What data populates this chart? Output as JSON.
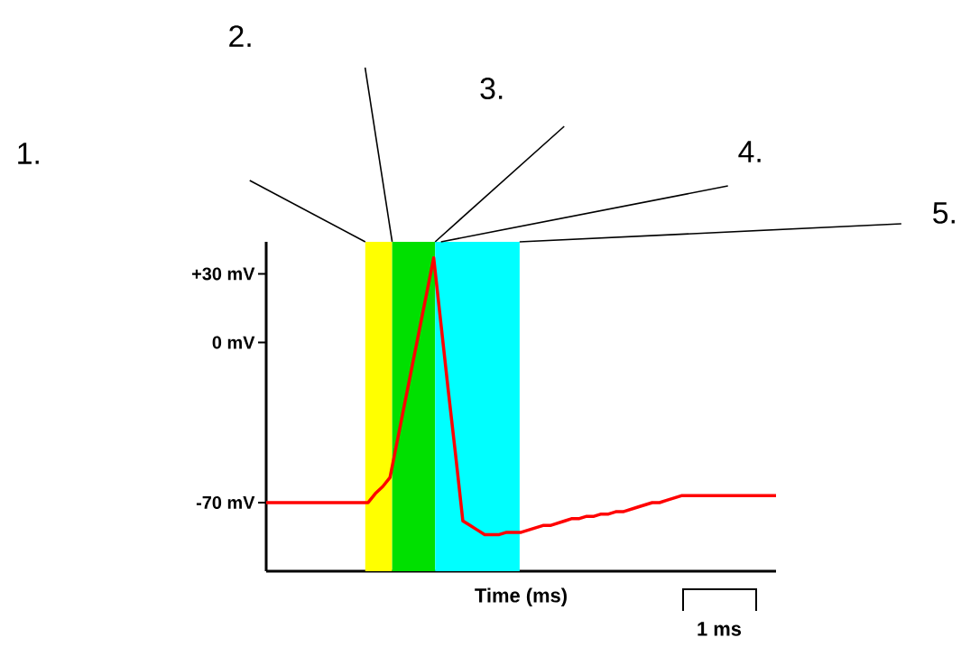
{
  "chart_data": {
    "type": "line",
    "xlabel": "Time (ms)",
    "ylim": [
      -100,
      44
    ],
    "categories": [
      null,
      null,
      null,
      null,
      null,
      null,
      null,
      null,
      null,
      null,
      null,
      null,
      null,
      null,
      null,
      null,
      null,
      null,
      null,
      null,
      null,
      null,
      null,
      null,
      null,
      null,
      null,
      null,
      null,
      null,
      null,
      null,
      null,
      null,
      null,
      null,
      null,
      null,
      null,
      null,
      null,
      null,
      null,
      null,
      null,
      null,
      null,
      null,
      null,
      null,
      null,
      null,
      null,
      null,
      null,
      null,
      null,
      null,
      null,
      null,
      null,
      null,
      null,
      null,
      null,
      null,
      null,
      null,
      null,
      null,
      null
    ],
    "yticks": [
      {
        "value": 30,
        "label": "+30 mV"
      },
      {
        "value": 0,
        "label": "0 mV"
      },
      {
        "value": -70,
        "label": "-70 mV"
      }
    ],
    "tick_labels": "y",
    "grid": false,
    "series": [
      {
        "color": "#ff0000",
        "values": [
          -70,
          -70,
          -70,
          -70,
          -70,
          -70,
          -70,
          -70,
          -70,
          -70,
          -70,
          -70,
          -70,
          -70,
          -70,
          -66,
          -63,
          -59,
          -43,
          -27,
          -11,
          5,
          21,
          37,
          8,
          -21,
          -49,
          -78,
          -80,
          -82,
          -84,
          -84,
          -84,
          -83,
          -83,
          -83,
          -82,
          -81,
          -80,
          -80,
          -79,
          -78,
          -77,
          -77,
          -76,
          -76,
          -75,
          -75,
          -74,
          -74,
          -73,
          -72,
          -71,
          -70,
          -70,
          -69,
          -68,
          -67,
          -67,
          -67,
          -67,
          -67,
          -67,
          -67,
          -67,
          -67,
          -67,
          -67,
          -67,
          -67,
          -67
        ]
      }
    ],
    "annotations": [
      "1.",
      "2.",
      "3.",
      "4.",
      "5.",
      "1 ms"
    ]
  }
}
